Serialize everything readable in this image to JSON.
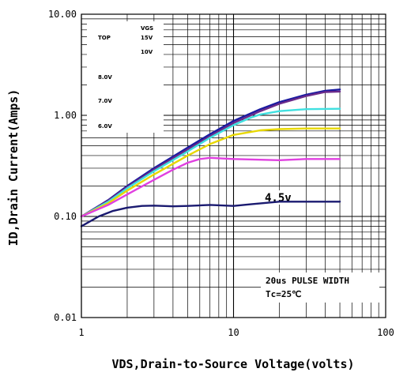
{
  "chart_data": {
    "type": "line",
    "xlabel": "VDS,Drain-to-Source Voltage(volts)",
    "ylabel": "ID,Drain Current(Amps)",
    "x_scale": "log",
    "y_scale": "log",
    "xlim": [
      1,
      100
    ],
    "ylim": [
      0.01,
      10
    ],
    "grid": true,
    "x_ticks": [
      {
        "value": 1,
        "label": "1"
      },
      {
        "value": 10,
        "label": "10"
      },
      {
        "value": 100,
        "label": "100"
      }
    ],
    "y_ticks": [
      {
        "value": 10,
        "label": "10.00"
      },
      {
        "value": 1,
        "label": "1.00"
      },
      {
        "value": 0.1,
        "label": "0.10"
      },
      {
        "value": 0.01,
        "label": "0.01"
      }
    ],
    "legend": {
      "header": "VGS",
      "top_label": "TOP",
      "entries": [
        "15V",
        "10V",
        "8.0V",
        "7.0V",
        "6.0V"
      ]
    },
    "annotations": {
      "curve_label": "4.5v",
      "conditions_line1": "20us PULSE WIDTH",
      "conditions_line2": "Tc=25℃"
    },
    "series": [
      {
        "color": "#1a1aa0",
        "x": [
          1,
          1.5,
          2,
          3,
          5,
          7,
          10,
          15,
          20,
          30,
          40,
          50
        ],
        "y": [
          0.1,
          0.145,
          0.2,
          0.3,
          0.48,
          0.65,
          0.88,
          1.15,
          1.35,
          1.6,
          1.75,
          1.8
        ]
      },
      {
        "color": "#6a2a8a",
        "x": [
          1,
          1.5,
          2,
          3,
          5,
          7,
          10,
          15,
          20,
          30,
          40,
          50
        ],
        "y": [
          0.1,
          0.143,
          0.195,
          0.29,
          0.46,
          0.62,
          0.84,
          1.1,
          1.3,
          1.55,
          1.7,
          1.72
        ]
      },
      {
        "color": "#40e0e0",
        "x": [
          1,
          1.5,
          2,
          3,
          5,
          7,
          10,
          13,
          15,
          20,
          30,
          50
        ],
        "y": [
          0.1,
          0.14,
          0.19,
          0.28,
          0.44,
          0.6,
          0.8,
          0.95,
          1.02,
          1.1,
          1.15,
          1.16
        ]
      },
      {
        "color": "#e8d800",
        "x": [
          1,
          1.5,
          2,
          3,
          5,
          7,
          10,
          15,
          20,
          30,
          50
        ],
        "y": [
          0.1,
          0.135,
          0.18,
          0.26,
          0.4,
          0.52,
          0.64,
          0.71,
          0.73,
          0.74,
          0.74
        ]
      },
      {
        "color": "#e040e0",
        "x": [
          1,
          1.5,
          2,
          3,
          4,
          5,
          6,
          7,
          10,
          20,
          30,
          50
        ],
        "y": [
          0.1,
          0.13,
          0.165,
          0.23,
          0.29,
          0.34,
          0.37,
          0.38,
          0.37,
          0.36,
          0.37,
          0.37
        ]
      },
      {
        "color": "#1a1a70",
        "x": [
          1,
          1.3,
          1.6,
          2,
          2.5,
          3,
          4,
          5,
          7,
          10,
          13,
          20,
          30,
          50
        ],
        "y": [
          0.08,
          0.1,
          0.113,
          0.122,
          0.127,
          0.128,
          0.126,
          0.127,
          0.13,
          0.127,
          0.132,
          0.14,
          0.14,
          0.14
        ]
      }
    ]
  }
}
